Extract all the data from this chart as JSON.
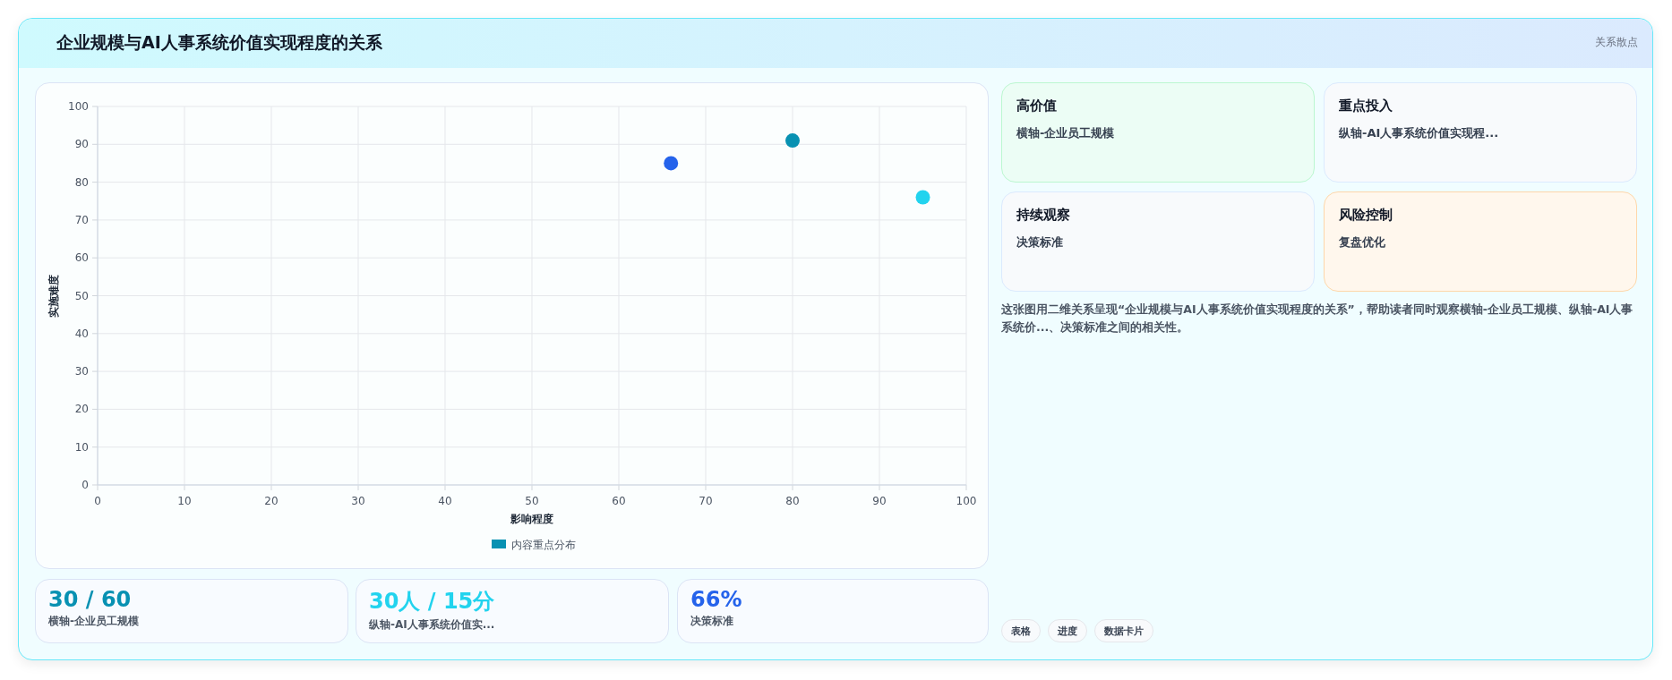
{
  "chart_data": [
    {
      "type": "scatter",
      "title": "企业规模与AI人事系统价值实现程度的关系",
      "xlabel": "影响程度",
      "ylabel": "实施难度",
      "x": [
        66,
        80,
        95
      ],
      "series": [
        {
          "name": "内容重点分布",
          "color": "#0891b2",
          "colors": [
            "#2563eb",
            "#0891b2",
            "#22d3ee"
          ],
          "values": [
            85,
            91,
            76
          ]
        }
      ],
      "xlim": [
        0,
        100
      ],
      "ylim": [
        0,
        100
      ],
      "xticks": [
        0,
        10,
        20,
        30,
        40,
        50,
        60,
        70,
        80,
        90,
        100
      ],
      "yticks": [
        0,
        10,
        20,
        30,
        40,
        50,
        60,
        70,
        80,
        90,
        100
      ],
      "grid": true,
      "legend": "bottom",
      "marker": "circle"
    },
    {
      "type": "other",
      "annotations": [
        "关系散点",
        "高价值",
        "横轴-企业员工规模",
        "重点投入",
        "纵轴-AI人事系统价值实现程...",
        "持续观察",
        "决策标准",
        "风险控制",
        "复盘优化",
        "这张图用二维关系呈现“企业规模与AI人事系统价值实现程度的关系”，帮助读者同时观察横轴-企业员工规模、纵轴-AI人事系统价...、决策标准之间的相关性。",
        "30 / 60",
        "横轴-企业员工规模",
        "30人 / 15分",
        "纵轴-AI人事系统价值实...",
        "66%",
        "决策标准",
        "表格",
        "进度",
        "数据卡片"
      ]
    }
  ]
}
